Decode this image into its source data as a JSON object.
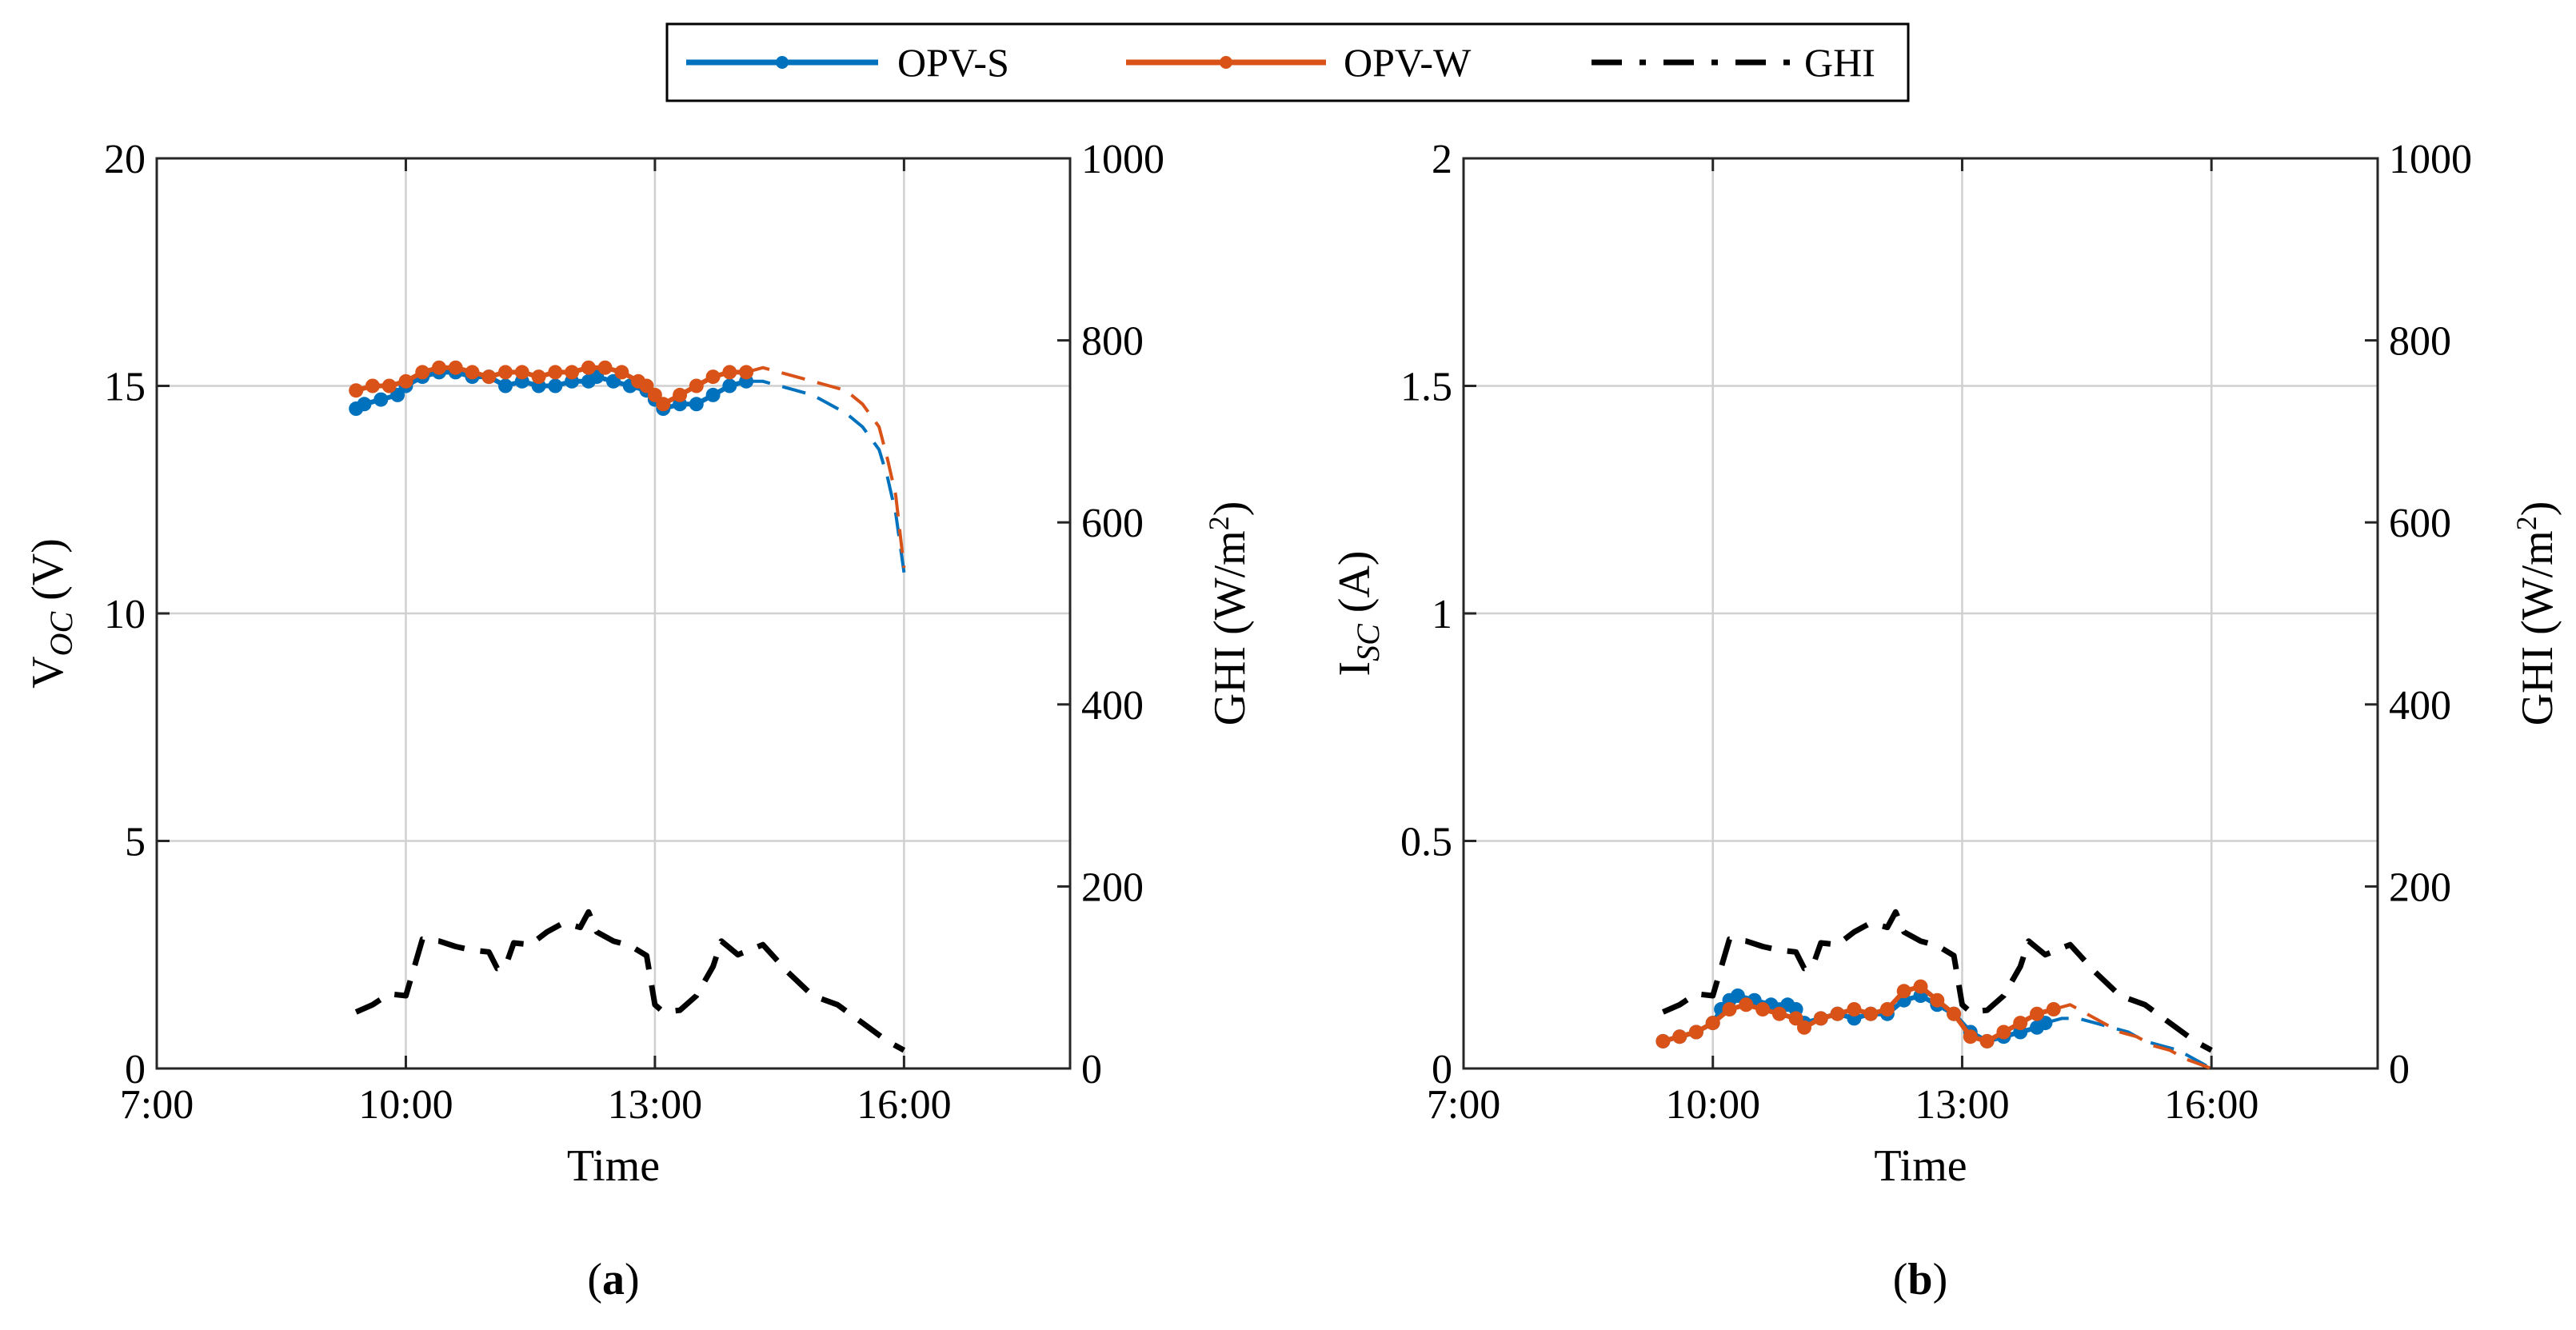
{
  "colors": {
    "opv_s": "#0072BD",
    "opv_w": "#D95319",
    "ghi": "#000000",
    "grid": "#d0d0d0",
    "axis": "#262626"
  },
  "legend": {
    "entries": [
      {
        "key": "opv_s",
        "label": "OPV-S",
        "style": "solid-marker"
      },
      {
        "key": "opv_w",
        "label": "OPV-W",
        "style": "solid-marker"
      },
      {
        "key": "ghi",
        "label": "GHI",
        "style": "dash-dot"
      }
    ]
  },
  "chart_data": [
    {
      "id": "a",
      "type": "line",
      "panel_label": "a",
      "xlabel": "Time",
      "ylabel_main": "V",
      "ylabel_sub": "OC",
      "ylabel_unit": " (V)",
      "y2label_main": "GHI (W/m",
      "y2label_sup": "2",
      "y2label_end": ")",
      "xlim": [
        7,
        18
      ],
      "xticks": [
        7,
        10,
        13,
        16
      ],
      "xtick_labels": [
        "7:00",
        "10:00",
        "13:00",
        "16:00"
      ],
      "ylim": [
        0,
        20
      ],
      "yticks": [
        0,
        5,
        10,
        15,
        20
      ],
      "ytick_labels": [
        "0",
        "5",
        "10",
        "15",
        "20"
      ],
      "y2lim": [
        0,
        1000
      ],
      "y2ticks": [
        0,
        200,
        400,
        600,
        800,
        1000
      ],
      "y2tick_labels": [
        "0",
        "200",
        "400",
        "600",
        "800",
        "1000"
      ],
      "grid": true,
      "series": [
        {
          "key": "opv_s",
          "name": "OPV-S",
          "axis": "left",
          "x_solid_end": 14.1,
          "x": [
            9.4,
            9.5,
            9.7,
            9.9,
            10.0,
            10.2,
            10.4,
            10.6,
            10.8,
            11.0,
            11.2,
            11.4,
            11.6,
            11.8,
            12.0,
            12.2,
            12.3,
            12.5,
            12.7,
            12.9,
            13.0,
            13.1,
            13.3,
            13.5,
            13.7,
            13.9,
            14.1,
            14.3,
            14.5,
            14.7,
            14.9,
            15.1,
            15.3,
            15.5,
            15.7,
            15.8,
            15.9,
            16.0
          ],
          "y": [
            14.5,
            14.6,
            14.7,
            14.8,
            15.0,
            15.2,
            15.3,
            15.3,
            15.2,
            15.2,
            15.0,
            15.1,
            15.0,
            15.0,
            15.1,
            15.1,
            15.2,
            15.1,
            15.0,
            14.9,
            14.7,
            14.5,
            14.6,
            14.6,
            14.8,
            15.0,
            15.1,
            15.1,
            15.0,
            14.9,
            14.8,
            14.6,
            14.4,
            14.1,
            13.6,
            13.0,
            12.2,
            10.9
          ]
        },
        {
          "key": "opv_w",
          "name": "OPV-W",
          "axis": "left",
          "x_solid_end": 14.1,
          "x": [
            9.4,
            9.6,
            9.8,
            10.0,
            10.2,
            10.4,
            10.6,
            10.8,
            11.0,
            11.2,
            11.4,
            11.6,
            11.8,
            12.0,
            12.2,
            12.4,
            12.6,
            12.8,
            12.9,
            13.0,
            13.1,
            13.3,
            13.5,
            13.7,
            13.9,
            14.1,
            14.3,
            14.5,
            14.7,
            14.9,
            15.1,
            15.3,
            15.5,
            15.7,
            15.8,
            15.9,
            16.0
          ],
          "y": [
            14.9,
            15.0,
            15.0,
            15.1,
            15.3,
            15.4,
            15.4,
            15.3,
            15.2,
            15.3,
            15.3,
            15.2,
            15.3,
            15.3,
            15.4,
            15.4,
            15.3,
            15.1,
            15.0,
            14.8,
            14.6,
            14.8,
            15.0,
            15.2,
            15.3,
            15.3,
            15.4,
            15.3,
            15.2,
            15.1,
            15.0,
            14.9,
            14.6,
            14.1,
            13.4,
            12.6,
            11.0
          ]
        },
        {
          "key": "ghi",
          "name": "GHI",
          "axis": "right",
          "x": [
            9.4,
            9.6,
            9.8,
            10.0,
            10.2,
            10.4,
            10.6,
            10.8,
            11.0,
            11.1,
            11.2,
            11.3,
            11.5,
            11.7,
            11.9,
            12.1,
            12.2,
            12.3,
            12.5,
            12.7,
            12.9,
            13.0,
            13.1,
            13.3,
            13.5,
            13.7,
            13.8,
            14.0,
            14.3,
            14.6,
            14.9,
            15.2,
            15.5,
            15.8,
            16.0
          ],
          "y": [
            62,
            70,
            82,
            80,
            142,
            140,
            134,
            130,
            128,
            110,
            112,
            138,
            136,
            150,
            160,
            155,
            172,
            150,
            140,
            135,
            124,
            70,
            62,
            64,
            80,
            112,
            140,
            125,
            136,
            106,
            80,
            70,
            50,
            30,
            20
          ]
        }
      ]
    },
    {
      "id": "b",
      "type": "line",
      "panel_label": "b",
      "xlabel": "Time",
      "ylabel_main": "I",
      "ylabel_sub": "SC",
      "ylabel_unit": " (A)",
      "y2label_main": "GHI (W/m",
      "y2label_sup": "2",
      "y2label_end": ")",
      "xlim": [
        7,
        18
      ],
      "xticks": [
        7,
        10,
        13,
        16
      ],
      "xtick_labels": [
        "7:00",
        "10:00",
        "13:00",
        "16:00"
      ],
      "ylim": [
        0,
        2
      ],
      "yticks": [
        0,
        0.5,
        1,
        1.5,
        2
      ],
      "ytick_labels": [
        "0",
        "0.5",
        "1",
        "1.5",
        "2"
      ],
      "y2lim": [
        0,
        1000
      ],
      "y2ticks": [
        0,
        200,
        400,
        600,
        800,
        1000
      ],
      "y2tick_labels": [
        "0",
        "200",
        "400",
        "600",
        "800",
        "1000"
      ],
      "grid": true,
      "series": [
        {
          "key": "opv_s",
          "name": "OPV-S",
          "axis": "left",
          "x_solid_end": 14.0,
          "x": [
            9.4,
            9.6,
            9.8,
            10.0,
            10.1,
            10.2,
            10.3,
            10.5,
            10.7,
            10.9,
            11.0,
            11.1,
            11.3,
            11.5,
            11.7,
            11.9,
            12.1,
            12.3,
            12.5,
            12.7,
            12.9,
            13.1,
            13.3,
            13.5,
            13.7,
            13.9,
            14.0,
            14.2,
            14.4,
            14.6,
            14.8,
            15.0,
            15.2,
            15.4,
            15.6,
            15.8,
            16.0
          ],
          "y": [
            0.06,
            0.07,
            0.08,
            0.1,
            0.13,
            0.15,
            0.16,
            0.15,
            0.14,
            0.14,
            0.13,
            0.1,
            0.11,
            0.12,
            0.11,
            0.12,
            0.12,
            0.15,
            0.16,
            0.14,
            0.12,
            0.08,
            0.06,
            0.07,
            0.08,
            0.09,
            0.1,
            0.11,
            0.11,
            0.1,
            0.09,
            0.08,
            0.06,
            0.05,
            0.04,
            0.02,
            0.0
          ]
        },
        {
          "key": "opv_w",
          "name": "OPV-W",
          "axis": "left",
          "x_solid_end": 14.1,
          "x": [
            9.4,
            9.6,
            9.8,
            10.0,
            10.2,
            10.4,
            10.6,
            10.8,
            11.0,
            11.1,
            11.3,
            11.5,
            11.7,
            11.9,
            12.1,
            12.3,
            12.5,
            12.7,
            12.9,
            13.1,
            13.3,
            13.5,
            13.7,
            13.9,
            14.1,
            14.3,
            14.5,
            14.7,
            14.9,
            15.1,
            15.3,
            15.5,
            15.7,
            16.0
          ],
          "y": [
            0.06,
            0.07,
            0.08,
            0.1,
            0.13,
            0.14,
            0.13,
            0.12,
            0.11,
            0.09,
            0.11,
            0.12,
            0.13,
            0.12,
            0.13,
            0.17,
            0.18,
            0.15,
            0.12,
            0.07,
            0.06,
            0.08,
            0.1,
            0.12,
            0.13,
            0.14,
            0.12,
            0.1,
            0.08,
            0.07,
            0.05,
            0.04,
            0.02,
            0.0
          ]
        },
        {
          "key": "ghi",
          "name": "GHI",
          "axis": "right",
          "x": [
            9.4,
            9.6,
            9.8,
            10.0,
            10.2,
            10.4,
            10.6,
            10.8,
            11.0,
            11.1,
            11.2,
            11.3,
            11.5,
            11.7,
            11.9,
            12.1,
            12.2,
            12.3,
            12.5,
            12.7,
            12.9,
            13.0,
            13.1,
            13.3,
            13.5,
            13.7,
            13.8,
            14.0,
            14.3,
            14.6,
            14.9,
            15.2,
            15.5,
            15.8,
            16.0
          ],
          "y": [
            62,
            70,
            82,
            80,
            142,
            140,
            134,
            130,
            128,
            110,
            112,
            138,
            136,
            150,
            160,
            155,
            172,
            150,
            140,
            135,
            124,
            70,
            62,
            64,
            80,
            112,
            140,
            125,
            136,
            106,
            80,
            70,
            50,
            30,
            20
          ]
        }
      ]
    }
  ]
}
